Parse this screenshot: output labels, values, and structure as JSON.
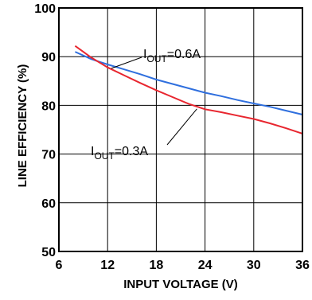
{
  "chart_data": {
    "type": "line",
    "xlabel": "INPUT VOLTAGE (V)",
    "ylabel": "LINE EFFICIENCY (%)",
    "xlim": [
      6,
      36
    ],
    "ylim": [
      50,
      100
    ],
    "xticks": [
      "6",
      "12",
      "18",
      "24",
      "30",
      "36"
    ],
    "yticks": [
      "50",
      "60",
      "70",
      "80",
      "90",
      "100"
    ],
    "grid": true,
    "series": [
      {
        "name": "IOUT=0.6A",
        "color": "#2f6fde",
        "x": [
          8,
          10,
          12,
          14,
          16,
          18,
          20,
          22,
          24,
          26,
          28,
          30,
          32,
          34,
          36
        ],
        "y": [
          91.0,
          89.5,
          88.4,
          87.4,
          86.4,
          85.3,
          84.4,
          83.5,
          82.6,
          81.9,
          81.1,
          80.4,
          79.7,
          78.9,
          78.1
        ]
      },
      {
        "name": "IOUT=0.3A",
        "color": "#e8262f",
        "x": [
          8,
          10,
          12,
          14,
          16,
          18,
          20,
          22,
          24,
          26,
          28,
          30,
          32,
          34,
          36
        ],
        "y": [
          92.2,
          89.8,
          87.8,
          86.2,
          84.6,
          83.1,
          81.7,
          80.3,
          79.2,
          78.6,
          77.9,
          77.2,
          76.3,
          75.3,
          74.2
        ]
      }
    ],
    "annotations": [
      {
        "main": "I",
        "sub": "OUT",
        "rest": "=0.6A"
      },
      {
        "main": "I",
        "sub": "OUT",
        "rest": "=0.3A"
      }
    ]
  }
}
